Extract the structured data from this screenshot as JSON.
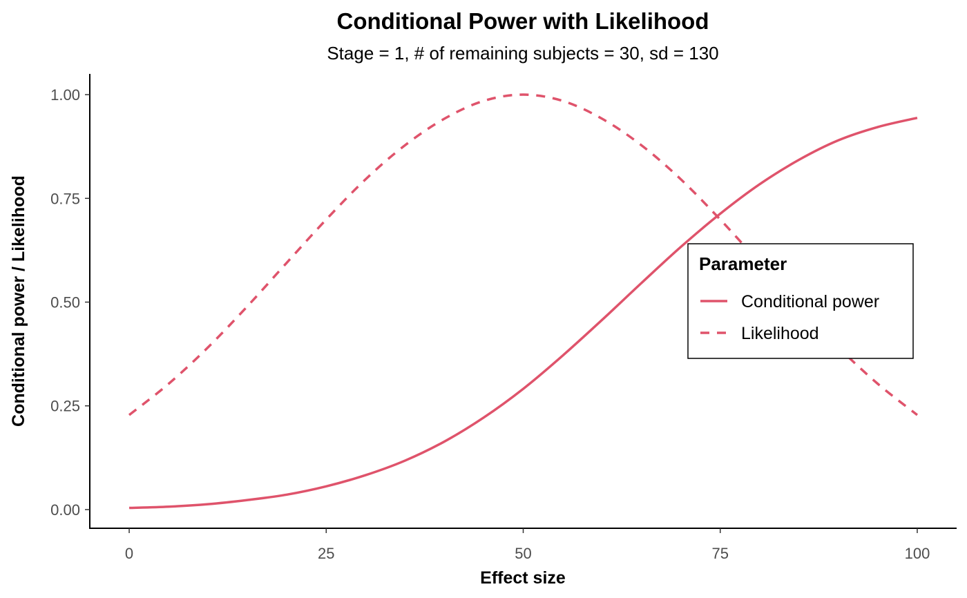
{
  "chart_data": {
    "type": "line",
    "title": "Conditional Power with Likelihood",
    "subtitle": "Stage = 1, # of remaining subjects = 30, sd = 130",
    "xlabel": "Effect size",
    "ylabel": "Conditional power / Likelihood",
    "xlim": [
      -5,
      105
    ],
    "ylim": [
      -0.045,
      1.05
    ],
    "x_ticks": [
      0,
      25,
      50,
      75,
      100
    ],
    "x_tick_labels": [
      "0",
      "25",
      "50",
      "75",
      "100"
    ],
    "y_ticks": [
      0,
      0.25,
      0.5,
      0.75,
      1.0
    ],
    "y_tick_labels": [
      "0.00",
      "0.25",
      "0.50",
      "0.75",
      "1.00"
    ],
    "grid": false,
    "legend": {
      "title": "Parameter",
      "position": "right",
      "entries": [
        "Conditional power",
        "Likelihood"
      ]
    },
    "series": [
      {
        "name": "Conditional power",
        "color": "#DF536B",
        "dash": "solid",
        "x": [
          0,
          5,
          10,
          15,
          20,
          25,
          30,
          35,
          40,
          45,
          50,
          55,
          60,
          65,
          70,
          75,
          80,
          85,
          90,
          95,
          100
        ],
        "y": [
          0.004,
          0.007,
          0.013,
          0.023,
          0.036,
          0.056,
          0.083,
          0.118,
          0.164,
          0.222,
          0.291,
          0.371,
          0.457,
          0.546,
          0.633,
          0.713,
          0.784,
          0.843,
          0.89,
          0.922,
          0.944
        ]
      },
      {
        "name": "Likelihood",
        "color": "#DF536B",
        "dash": "dashed",
        "x": [
          0,
          5,
          10,
          15,
          20,
          25,
          30,
          35,
          40,
          45,
          50,
          55,
          60,
          65,
          70,
          75,
          80,
          85,
          90,
          95,
          100
        ],
        "y": [
          0.228,
          0.303,
          0.391,
          0.49,
          0.595,
          0.699,
          0.796,
          0.878,
          0.942,
          0.985,
          1.0,
          0.985,
          0.942,
          0.878,
          0.796,
          0.699,
          0.595,
          0.49,
          0.391,
          0.303,
          0.228
        ]
      }
    ]
  }
}
